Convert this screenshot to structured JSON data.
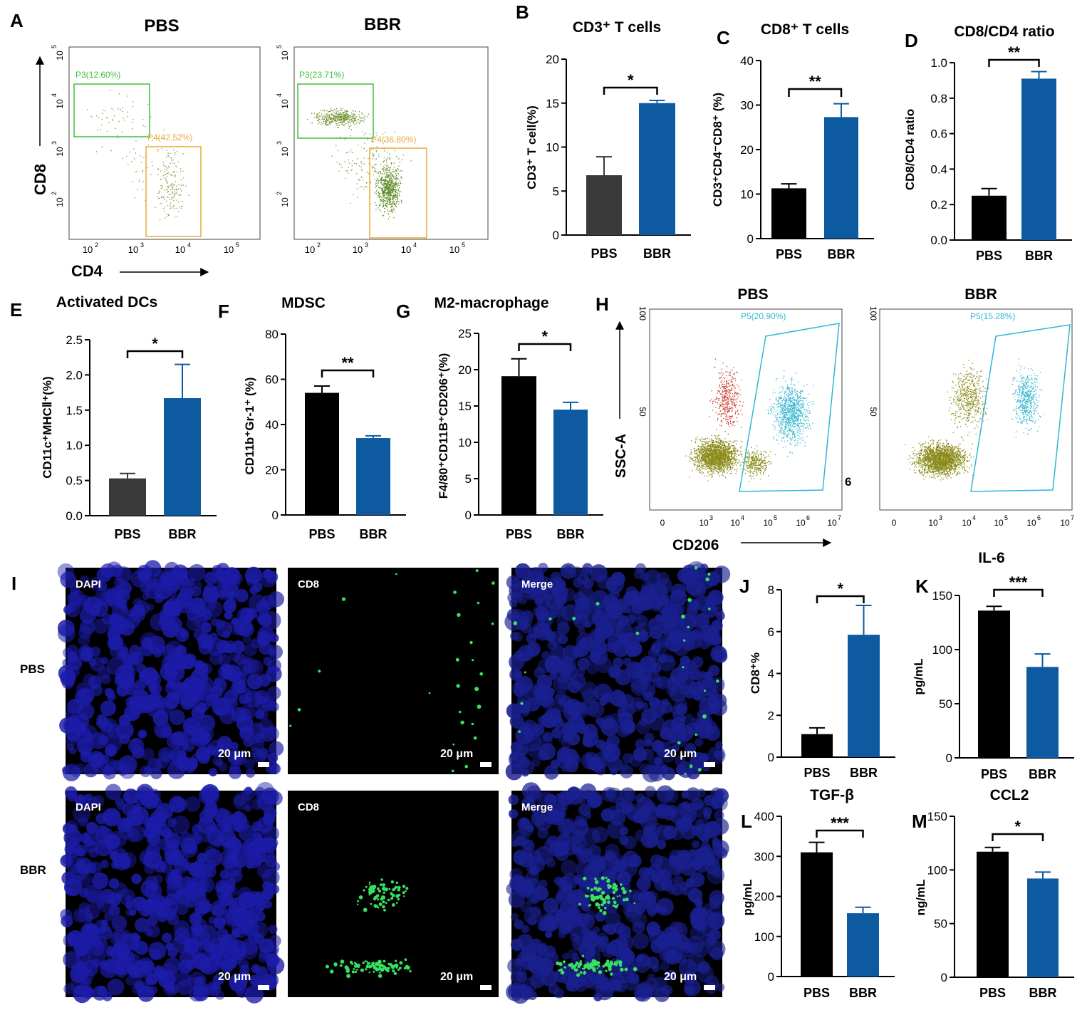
{
  "colors": {
    "pbs_gray": "#3a3a3a",
    "pbs_black": "#000000",
    "bbr_blue": "#0d5aa0",
    "gate_green": "#3fbf3f",
    "gate_orange": "#e8a838",
    "gate_cyan": "#2fb6d6",
    "dot_olive": "#8a8a1a",
    "dot_red": "#c83a2a",
    "dot_cyan": "#3ab6d0",
    "nuclei_blue": "#1a1aa0",
    "cd8_green": "#38e060"
  },
  "panelA": {
    "letter": "A",
    "left_title": "PBS",
    "right_title": "BBR",
    "y_label": "CD8",
    "x_label": "CD4",
    "left_gates": [
      "P3(12.60%)",
      "P4(42.52%)"
    ],
    "right_gates": [
      "P3(23.71%)",
      "P4(36.80%)"
    ],
    "x_ticks": [
      "10",
      "10",
      "10",
      "10"
    ],
    "x_exps": [
      "2",
      "3",
      "4",
      "5"
    ],
    "y_ticks": [
      "10",
      "10",
      "10",
      "10"
    ],
    "y_exps": [
      "2",
      "3",
      "4",
      "5"
    ]
  },
  "panelH": {
    "letter": "H",
    "left_title": "PBS",
    "right_title": "BBR",
    "y_label": "SSC-A",
    "x_label": "CD206",
    "left_gate": "P5(20.90%)",
    "right_gate": "P5(15.28%)",
    "x_ticks": [
      "0",
      "10",
      "10",
      "10",
      "10",
      "10"
    ],
    "x_exps": [
      "",
      "3",
      "4",
      "5",
      "6",
      "7"
    ],
    "y_ticks": [
      "100",
      "50"
    ],
    "stray": "6"
  },
  "panelI": {
    "letter": "I",
    "rows": [
      "PBS",
      "BBR"
    ],
    "channels": [
      "DAPI",
      "CD8",
      "Merge"
    ],
    "scale": "20 μm"
  },
  "chart_data": [
    {
      "letter": "B",
      "type": "bar",
      "title": "CD3⁺ T cells",
      "ylabel": "CD3⁺ T cell(%)",
      "categories": [
        "PBS",
        "BBR"
      ],
      "values": [
        6.8,
        15.0
      ],
      "errors": [
        2.1,
        0.3
      ],
      "ylim": [
        0,
        20
      ],
      "yticks": [
        "0",
        "5",
        "10",
        "15",
        "20"
      ],
      "sig": "*",
      "pbs_color": "gray"
    },
    {
      "letter": "C",
      "type": "bar",
      "title": "CD8⁺ T cells",
      "ylabel": "CD3⁺CD4⁻CD8⁺ (%)",
      "categories": [
        "PBS",
        "BBR"
      ],
      "values": [
        11.3,
        27.3
      ],
      "errors": [
        1.0,
        3.0
      ],
      "ylim": [
        0,
        40
      ],
      "yticks": [
        "0",
        "10",
        "20",
        "30",
        "40"
      ],
      "sig": "**",
      "pbs_color": "black"
    },
    {
      "letter": "D",
      "type": "bar",
      "title": "CD8/CD4 ratio",
      "ylabel": "CD8/CD4 ratio",
      "categories": [
        "PBS",
        "BBR"
      ],
      "values": [
        0.25,
        0.91
      ],
      "errors": [
        0.04,
        0.04
      ],
      "ylim": [
        0,
        1.0
      ],
      "yticks": [
        "0.0",
        "0.2",
        "0.4",
        "0.6",
        "0.8",
        "1.0"
      ],
      "sig": "**",
      "pbs_color": "black"
    },
    {
      "letter": "E",
      "type": "bar",
      "title": "Activated DCs",
      "ylabel": "CD11c⁺MHCⅡ⁺(%)",
      "categories": [
        "PBS",
        "BBR"
      ],
      "values": [
        0.53,
        1.67
      ],
      "errors": [
        0.07,
        0.48
      ],
      "ylim": [
        0,
        2.5
      ],
      "yticks": [
        "0.0",
        "0.5",
        "1.0",
        "1.5",
        "2.0",
        "2.5"
      ],
      "sig": "*",
      "pbs_color": "gray"
    },
    {
      "letter": "F",
      "type": "bar",
      "title": "MDSC",
      "ylabel": "CD11b⁺Gr-1⁺ (%)",
      "categories": [
        "PBS",
        "BBR"
      ],
      "values": [
        54,
        34
      ],
      "errors": [
        3,
        1
      ],
      "ylim": [
        0,
        80
      ],
      "yticks": [
        "0",
        "20",
        "40",
        "60",
        "80"
      ],
      "sig": "**",
      "pbs_color": "black"
    },
    {
      "letter": "G",
      "type": "bar",
      "title": "M2-macrophage",
      "ylabel": "F4/80⁺CD11B⁺CD206⁺(%)",
      "categories": [
        "PBS",
        "BBR"
      ],
      "values": [
        19.1,
        14.5
      ],
      "errors": [
        2.4,
        1.0
      ],
      "ylim": [
        0,
        25
      ],
      "yticks": [
        "0",
        "5",
        "10",
        "15",
        "20",
        "25"
      ],
      "sig": "*",
      "pbs_color": "black"
    },
    {
      "letter": "J",
      "type": "bar",
      "title": "",
      "ylabel": "CD8⁺%",
      "categories": [
        "PBS",
        "BBR"
      ],
      "values": [
        1.1,
        5.85
      ],
      "errors": [
        0.3,
        1.4
      ],
      "ylim": [
        0,
        8
      ],
      "yticks": [
        "0",
        "2",
        "4",
        "6",
        "8"
      ],
      "sig": "*",
      "pbs_color": "black"
    },
    {
      "letter": "K",
      "type": "bar",
      "title": "IL-6",
      "ylabel": "pg/mL",
      "categories": [
        "PBS",
        "BBR"
      ],
      "values": [
        136,
        84
      ],
      "errors": [
        4,
        12
      ],
      "ylim": [
        0,
        150
      ],
      "yticks": [
        "0",
        "50",
        "100",
        "150"
      ],
      "sig": "***",
      "pbs_color": "black"
    },
    {
      "letter": "L",
      "type": "bar",
      "title": "TGF-β",
      "ylabel": "pg/mL",
      "categories": [
        "PBS",
        "BBR"
      ],
      "values": [
        310,
        158
      ],
      "errors": [
        25,
        15
      ],
      "ylim": [
        0,
        400
      ],
      "yticks": [
        "0",
        "100",
        "200",
        "300",
        "400"
      ],
      "sig": "***",
      "pbs_color": "black"
    },
    {
      "letter": "M",
      "type": "bar",
      "title": "CCL2",
      "ylabel": "ng/mL",
      "categories": [
        "PBS",
        "BBR"
      ],
      "values": [
        117,
        92
      ],
      "errors": [
        4,
        6
      ],
      "ylim": [
        0,
        150
      ],
      "yticks": [
        "0",
        "50",
        "100",
        "150"
      ],
      "sig": "*",
      "pbs_color": "black"
    }
  ]
}
